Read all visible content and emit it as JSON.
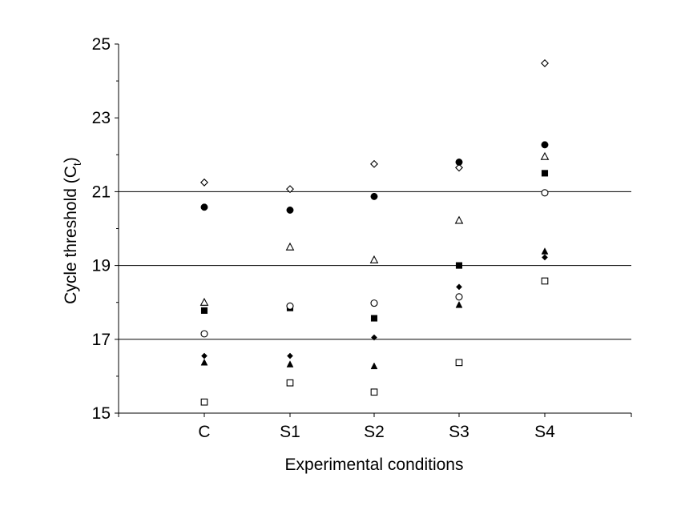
{
  "chart_data": {
    "type": "scatter",
    "xlabel": "Experimental conditions",
    "ylabel_main": "Cycle threshold (C",
    "ylabel_sub": "t",
    "ylabel_close": ")",
    "ylim": [
      15,
      25
    ],
    "yticks": [
      15,
      17,
      19,
      21,
      23,
      25
    ],
    "gridlines": [
      17,
      19,
      21
    ],
    "categories": [
      "C",
      "S1",
      "S2",
      "S3",
      "S4"
    ],
    "series": [
      {
        "marker": "open-diamond",
        "values": [
          21.25,
          21.07,
          21.75,
          21.65,
          24.48
        ]
      },
      {
        "marker": "filled-circle",
        "values": [
          20.58,
          20.5,
          20.87,
          21.8,
          22.27
        ]
      },
      {
        "marker": "open-triangle",
        "values": [
          18.0,
          19.5,
          19.15,
          20.22,
          21.95
        ]
      },
      {
        "marker": "filled-square",
        "values": [
          17.78,
          17.85,
          17.57,
          19.0,
          21.5
        ]
      },
      {
        "marker": "open-circle",
        "values": [
          17.15,
          17.9,
          17.98,
          18.15,
          20.97
        ]
      },
      {
        "marker": "filled-diamond",
        "values": [
          16.55,
          16.55,
          17.05,
          18.42,
          19.22
        ]
      },
      {
        "marker": "filled-triangle",
        "values": [
          16.37,
          16.32,
          16.27,
          17.93,
          19.38
        ]
      },
      {
        "marker": "open-square",
        "values": [
          15.3,
          15.82,
          15.57,
          16.37,
          18.58
        ]
      }
    ]
  }
}
